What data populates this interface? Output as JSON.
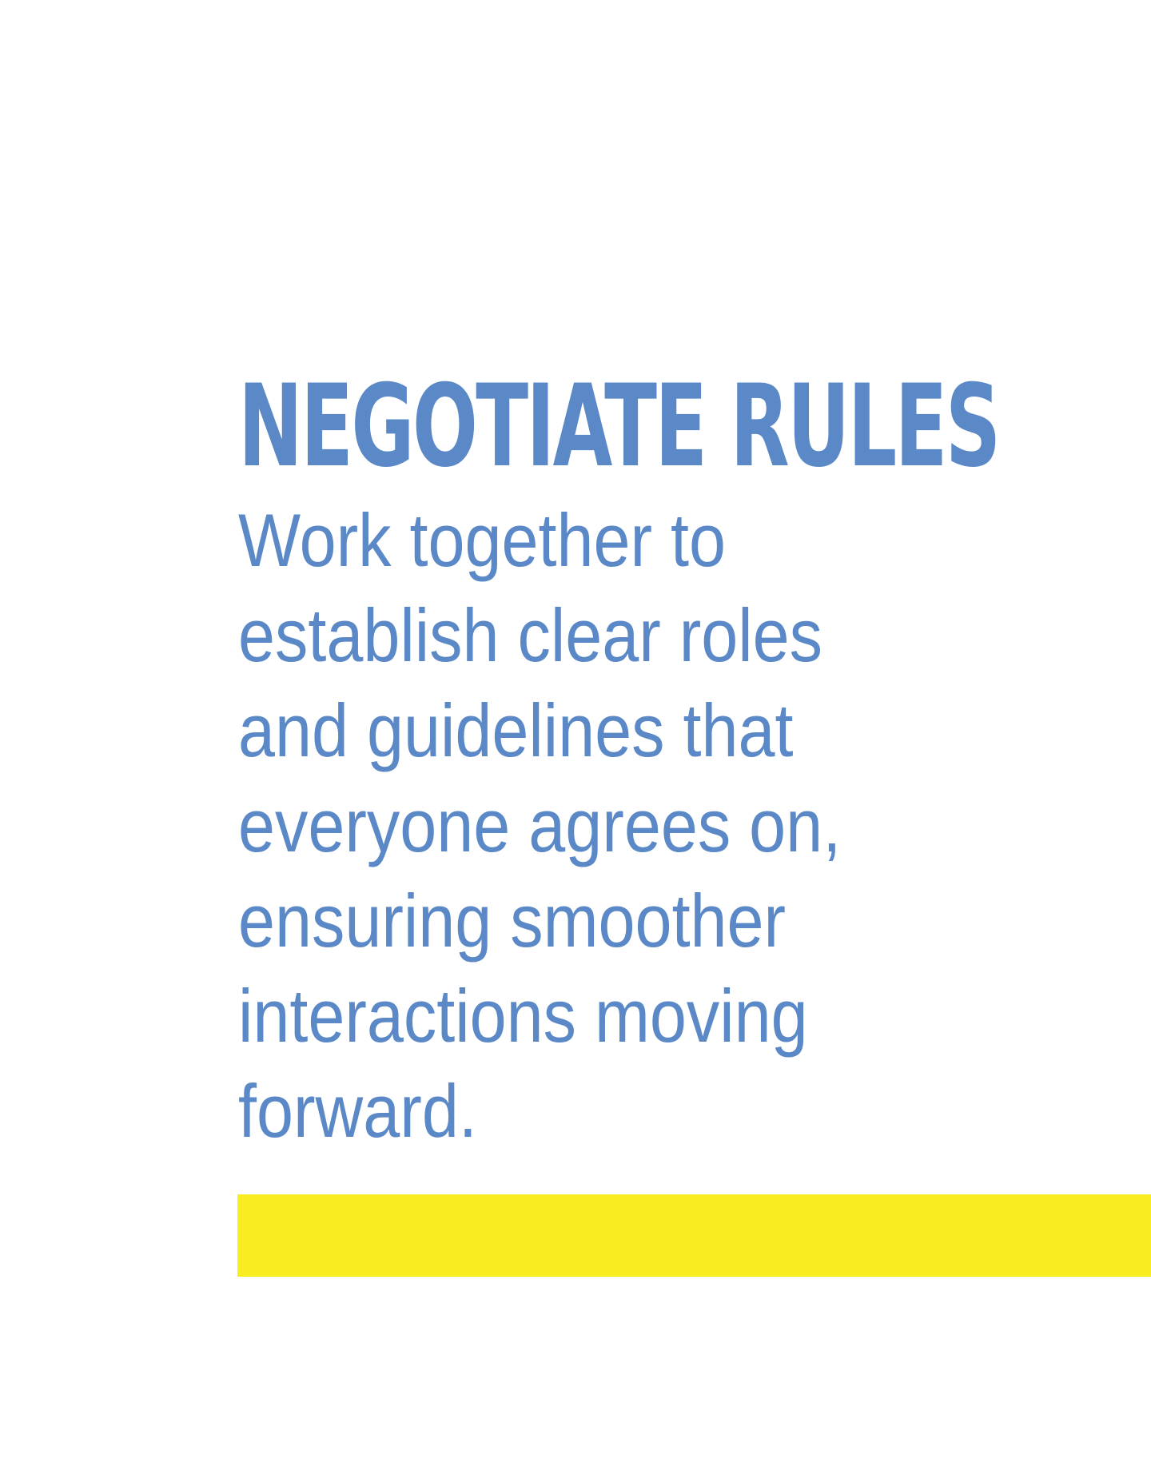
{
  "heading": {
    "title": "NEGOTIATE RULES"
  },
  "body": {
    "lines": [
      "Work together to",
      "establish clear roles",
      "and guidelines that",
      "everyone agrees on,",
      "ensuring smoother",
      "interactions moving",
      "forward."
    ]
  },
  "colors": {
    "text": "#5b88c6",
    "accent_bar": "#f9ed22",
    "background": "#ffffff"
  }
}
